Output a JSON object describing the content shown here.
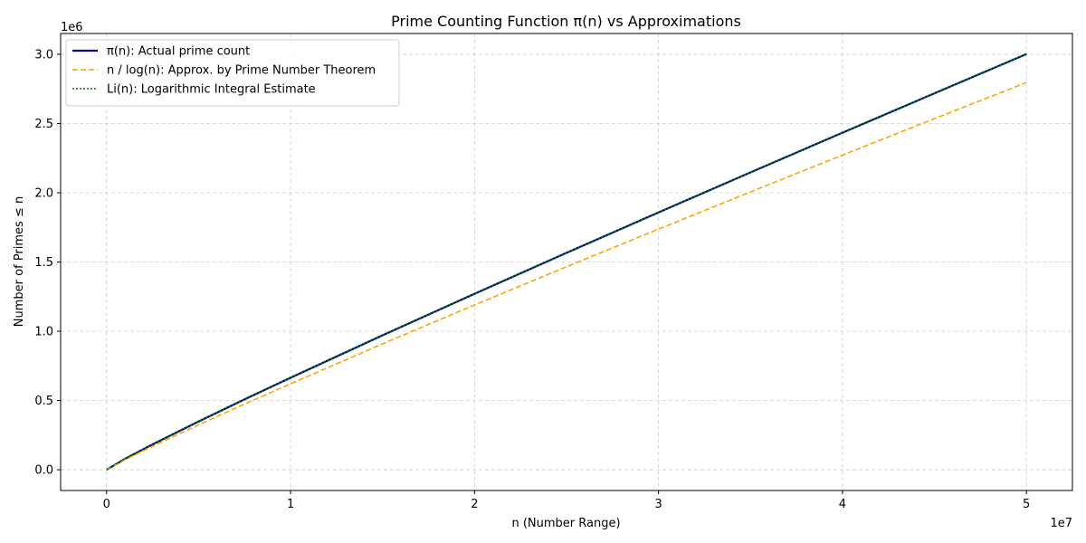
{
  "chart_data": {
    "type": "line",
    "title": "Prime Counting Function π(n) vs Approximations",
    "xlabel": "n (Number Range)",
    "ylabel": "Number of Primes ≤ n",
    "x_offset_label": "1e7",
    "y_offset_label": "1e6",
    "x": [
      0,
      1000000,
      2500000,
      5000000,
      7500000,
      10000000,
      15000000,
      20000000,
      25000000,
      30000000,
      35000000,
      40000000,
      45000000,
      50000000
    ],
    "x_ticks": [
      0,
      10000000,
      20000000,
      30000000,
      40000000,
      50000000
    ],
    "x_tick_labels": [
      "0",
      "1",
      "2",
      "3",
      "4",
      "5"
    ],
    "y_ticks": [
      0,
      500000,
      1000000,
      1500000,
      2000000,
      2500000,
      3000000
    ],
    "y_tick_labels": [
      "0.0",
      "0.5",
      "1.0",
      "1.5",
      "2.0",
      "2.5",
      "3.0"
    ],
    "xlim": [
      -2500000,
      52500000
    ],
    "ylim": [
      -150000,
      3150000
    ],
    "grid": true,
    "legend_position": "top-left",
    "series": [
      {
        "name": "π(n): Actual prime count",
        "color": "#000080",
        "style": "solid",
        "values": [
          0,
          78498,
          183072,
          348513,
          508261,
          664579,
          970704,
          1270607,
          1565927,
          1857859,
          2146775,
          2433654,
          2717775,
          3001134
        ]
      },
      {
        "name": "n / log(n): Approx. by Prime Number Theorem",
        "color": "#ffa500",
        "style": "dashed",
        "values": [
          0,
          72382,
          169424,
          324150,
          474527,
          620421,
          908928,
          1189680,
          1465480,
          1737400,
          2006050,
          2271838,
          2535060,
          2795910
        ]
      },
      {
        "name": "Li(n): Logarithmic Integral Estimate",
        "color": "#008000",
        "style": "dotted",
        "values": [
          0,
          78627,
          183307,
          348638,
          508565,
          664918,
          971080,
          1271032,
          1566360,
          1858370,
          2147300,
          2434260,
          2718400,
          3001860
        ]
      }
    ]
  }
}
